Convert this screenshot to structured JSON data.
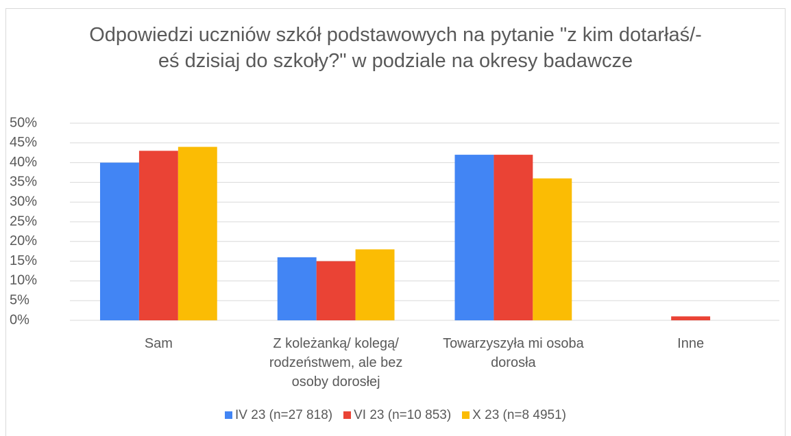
{
  "chart_data": {
    "type": "bar",
    "title": "Odpowiedzi uczniów szkół podstawowych na pytanie \"z kim dotarłaś/-eś dzisiaj do szkoły?\" w podziale na okresy badawcze",
    "categories": [
      "Sam",
      "Z koleżanką/ kolegą/ rodzeństwem, ale bez osoby dorosłej",
      "Towarzyszyła mi osoba dorosła",
      "Inne"
    ],
    "series": [
      {
        "name": "IV 23 (n=27 818)",
        "color": "#4285f4",
        "values": [
          40,
          16,
          42,
          0
        ]
      },
      {
        "name": "VI 23 (n=10 853)",
        "color": "#ea4335",
        "values": [
          43,
          15,
          42,
          1
        ]
      },
      {
        "name": "X 23 (n=8 4951)",
        "color": "#fbbc04",
        "values": [
          44,
          18,
          36,
          0
        ]
      }
    ],
    "ylim": [
      0,
      50
    ],
    "yticks": [
      {
        "value": 0,
        "label": "0%"
      },
      {
        "value": 5,
        "label": "5%"
      },
      {
        "value": 10,
        "label": "10%"
      },
      {
        "value": 15,
        "label": "15%"
      },
      {
        "value": 20,
        "label": "20%"
      },
      {
        "value": 25,
        "label": "25%"
      },
      {
        "value": 30,
        "label": "30%"
      },
      {
        "value": 35,
        "label": "35%"
      },
      {
        "value": 40,
        "label": "40%"
      },
      {
        "value": 45,
        "label": "45%"
      },
      {
        "value": 50,
        "label": "50%"
      }
    ],
    "grid": true,
    "legend": "bottom"
  }
}
